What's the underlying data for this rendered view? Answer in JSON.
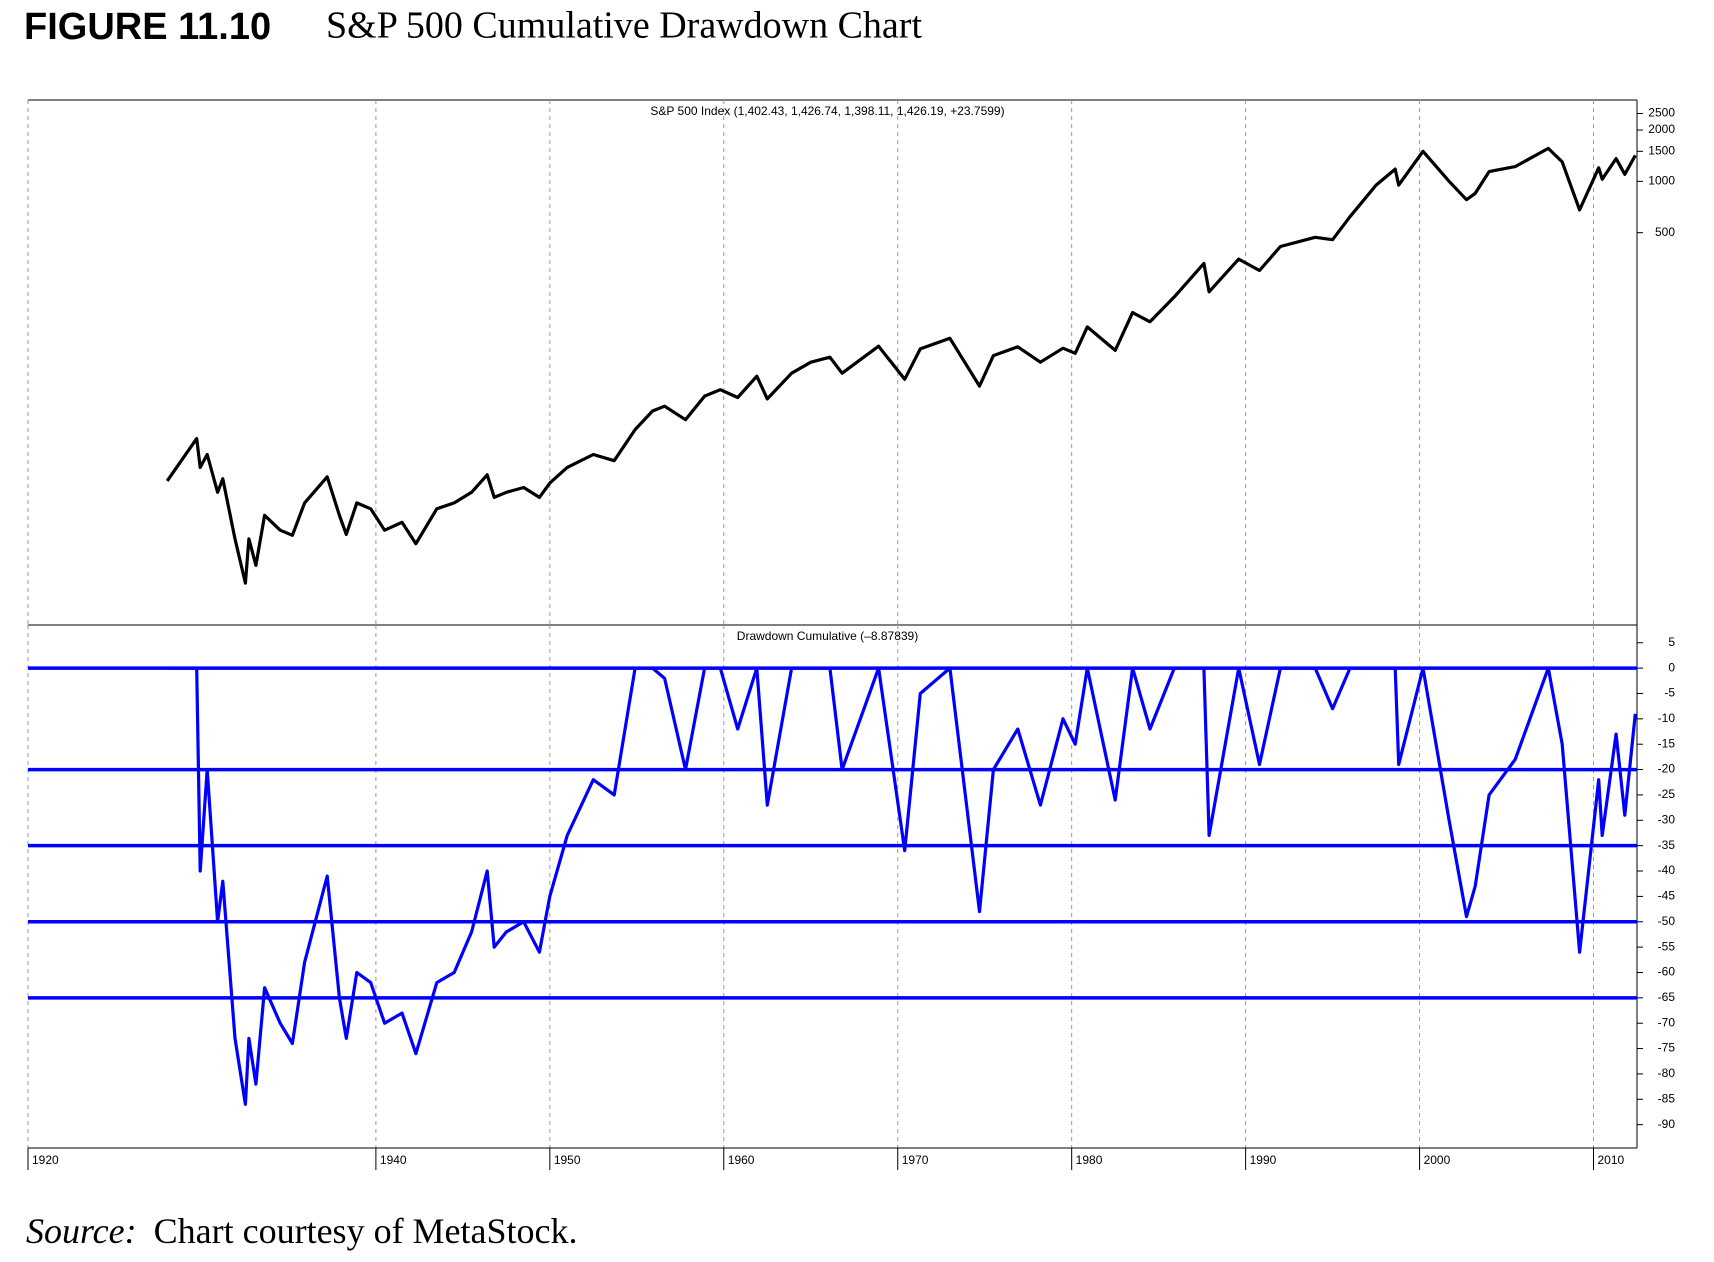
{
  "figure_label": "FIGURE 11.10",
  "figure_title": "S&P 500 Cumulative Drawdown Chart",
  "source_label": "Source:",
  "source_text": "Chart courtesy of MetaStock.",
  "chart_data": [
    {
      "type": "line",
      "title": "S&P 500 Index  (1,402.43, 1,426.74, 1,398.11, 1,426.19, +23.7599)",
      "color": "#000000",
      "log_scale": true,
      "grid": true,
      "xlim": [
        1920,
        2012.5
      ],
      "xticks": [
        1920,
        1940,
        1950,
        1960,
        1970,
        1980,
        1990,
        2000,
        2010
      ],
      "ylim": [
        2.5,
        3000
      ],
      "yticks": [
        500,
        1000,
        1500,
        2000,
        2500
      ],
      "x": [
        1928.0,
        1929.7,
        1929.9,
        1930.3,
        1930.9,
        1931.2,
        1931.9,
        1932.5,
        1932.7,
        1933.1,
        1933.6,
        1934.5,
        1935.2,
        1935.9,
        1937.2,
        1937.9,
        1938.3,
        1938.9,
        1939.7,
        1940.5,
        1941.5,
        1942.3,
        1943.5,
        1944.5,
        1945.5,
        1946.4,
        1946.8,
        1947.5,
        1948.5,
        1949.4,
        1950.0,
        1951.0,
        1952.5,
        1953.7,
        1954.9,
        1955.9,
        1956.6,
        1957.8,
        1958.9,
        1959.8,
        1960.8,
        1961.9,
        1962.5,
        1963.9,
        1965.0,
        1966.1,
        1966.8,
        1968.9,
        1970.4,
        1971.3,
        1973.0,
        1974.7,
        1975.5,
        1976.9,
        1978.2,
        1979.5,
        1980.2,
        1980.9,
        1982.5,
        1983.5,
        1984.5,
        1985.9,
        1987.6,
        1987.9,
        1989.6,
        1990.8,
        1992.0,
        1994.0,
        1995.0,
        1996.0,
        1997.5,
        1998.6,
        1998.8,
        2000.2,
        2001.7,
        2002.7,
        2003.2,
        2004.0,
        2005.5,
        2007.4,
        2008.2,
        2009.2,
        2010.3,
        2010.5,
        2011.3,
        2011.8,
        2012.4
      ],
      "values": [
        17.5,
        31,
        21,
        25,
        15,
        18,
        8,
        4.4,
        8,
        5.6,
        11,
        9,
        8.4,
        13,
        18.5,
        11,
        8.5,
        13,
        12,
        9,
        10,
        7.5,
        12,
        13,
        15,
        19,
        14,
        15,
        16,
        14,
        17,
        21,
        25,
        23,
        35,
        45,
        48,
        40,
        55,
        60,
        54,
        72,
        53,
        75,
        87,
        93,
        75,
        108,
        69,
        104,
        120,
        63,
        95,
        107,
        87,
        105,
        98,
        140,
        102,
        170,
        150,
        210,
        330,
        225,
        350,
        300,
        415,
        470,
        455,
        620,
        950,
        1180,
        950,
        1500,
        1000,
        780,
        850,
        1140,
        1220,
        1560,
        1300,
        680,
        1200,
        1030,
        1360,
        1100,
        1420
      ]
    },
    {
      "type": "line",
      "title": "Drawdown Cumulative (–8.87839)",
      "color": "#0000ff",
      "grid": true,
      "xlim": [
        1920,
        2012.5
      ],
      "xticks": [
        1920,
        1940,
        1950,
        1960,
        1970,
        1980,
        1990,
        2000,
        2010
      ],
      "ylim": [
        -94.6,
        8.5
      ],
      "yticks": [
        5,
        0,
        -5,
        -10,
        -15,
        -20,
        -25,
        -30,
        -35,
        -40,
        -45,
        -50,
        -55,
        -60,
        -65,
        -70,
        -75,
        -80,
        -85,
        -90
      ],
      "hlines": [
        0,
        -20,
        -35,
        -50,
        -65
      ],
      "x": [
        1928.0,
        1929.7,
        1929.9,
        1930.3,
        1930.9,
        1931.2,
        1931.9,
        1932.5,
        1932.7,
        1933.1,
        1933.6,
        1934.5,
        1935.2,
        1935.9,
        1937.2,
        1937.9,
        1938.3,
        1938.9,
        1939.7,
        1940.5,
        1941.5,
        1942.3,
        1943.5,
        1944.5,
        1945.5,
        1946.4,
        1946.8,
        1947.5,
        1948.5,
        1949.4,
        1950.0,
        1951.0,
        1952.5,
        1953.7,
        1954.9,
        1955.9,
        1956.6,
        1957.8,
        1958.9,
        1959.8,
        1960.8,
        1961.9,
        1962.5,
        1963.9,
        1965.0,
        1966.1,
        1966.8,
        1968.9,
        1970.4,
        1971.3,
        1973.0,
        1974.7,
        1975.5,
        1976.9,
        1978.2,
        1979.5,
        1980.2,
        1980.9,
        1982.5,
        1983.5,
        1984.5,
        1985.9,
        1987.6,
        1987.9,
        1989.6,
        1990.8,
        1992.0,
        1994.0,
        1995.0,
        1996.0,
        1997.5,
        1998.6,
        1998.8,
        2000.2,
        2001.7,
        2002.7,
        2003.2,
        2004.0,
        2005.5,
        2007.4,
        2008.2,
        2009.2,
        2010.3,
        2010.5,
        2011.3,
        2011.8,
        2012.4
      ],
      "values": [
        0,
        0,
        -40,
        -20,
        -50,
        -42,
        -73,
        -86,
        -73,
        -82,
        -63,
        -70,
        -74,
        -58,
        -41,
        -65,
        -73,
        -60,
        -62,
        -70,
        -68,
        -76,
        -62,
        -60,
        -52,
        -40,
        -55,
        -52,
        -50,
        -56,
        -45,
        -33,
        -22,
        -25,
        0,
        0,
        -2,
        -20,
        0,
        0,
        -12,
        0,
        -27,
        0,
        0,
        0,
        -20,
        0,
        -36,
        -5,
        0,
        -48,
        -20,
        -12,
        -27,
        -10,
        -15,
        0,
        -26,
        0,
        -12,
        0,
        0,
        -33,
        0,
        -19,
        0,
        0,
        -8,
        0,
        0,
        0,
        -19,
        0,
        -30,
        -49,
        -43,
        -25,
        -18,
        0,
        -15,
        -56,
        -22,
        -33,
        -13,
        -29,
        -9
      ]
    }
  ]
}
